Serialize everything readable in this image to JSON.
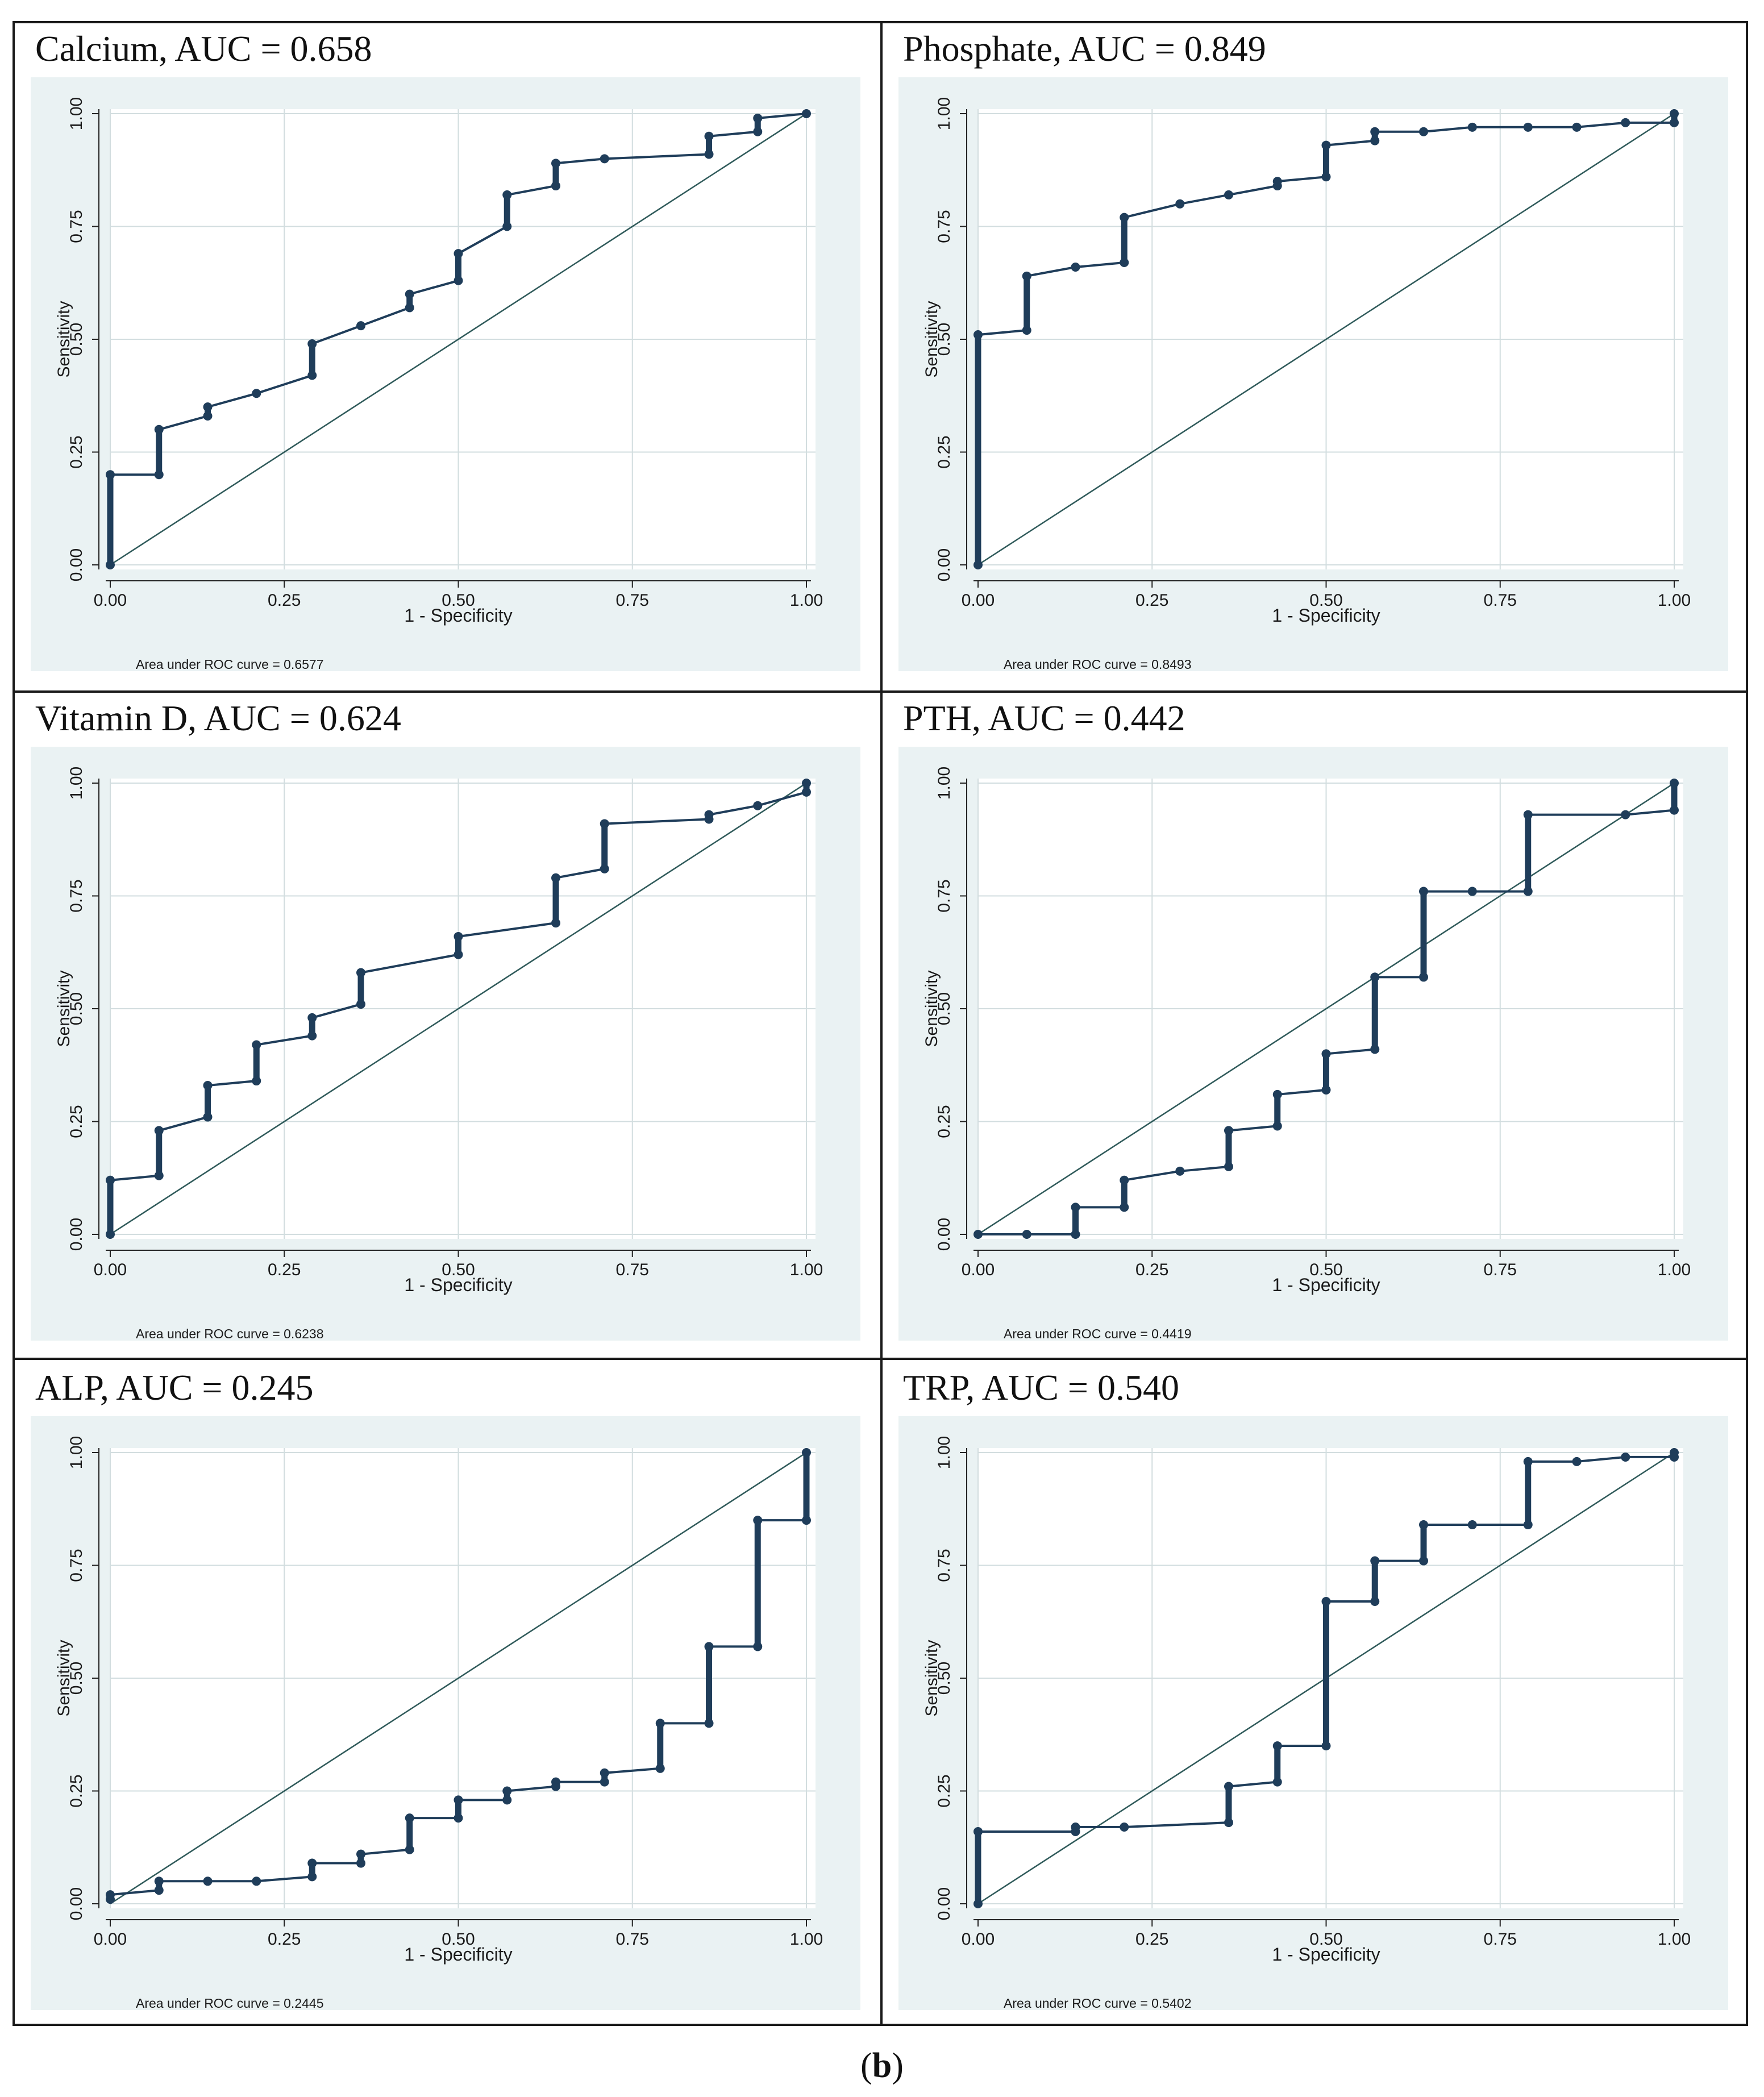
{
  "figure_label": "b",
  "common_axes": {
    "xlabel": "1 - Specificity",
    "ylabel": "Sensitivity",
    "xticks": [
      "0.00",
      "0.25",
      "0.50",
      "0.75",
      "1.00"
    ],
    "yticks": [
      "0.00",
      "0.25",
      "0.50",
      "0.75",
      "1.00"
    ]
  },
  "colors": {
    "curve": "#1f3d5a",
    "background": "#eaf2f3",
    "grid": "#d2dddf",
    "reference": "#2f5a5a"
  },
  "panels": [
    {
      "title": "Calcium, AUC = 0.658",
      "auc_note": "Area under ROC curve = 0.6577"
    },
    {
      "title": "Phosphate, AUC = 0.849",
      "auc_note": "Area under ROC curve = 0.8493"
    },
    {
      "title": "Vitamin D, AUC = 0.624",
      "auc_note": "Area under ROC curve = 0.6238"
    },
    {
      "title": "PTH, AUC = 0.442",
      "auc_note": "Area under ROC curve = 0.4419"
    },
    {
      "title": "ALP, AUC = 0.245",
      "auc_note": "Area under ROC curve = 0.2445"
    },
    {
      "title": "TRP, AUC = 0.540",
      "auc_note": "Area under ROC curve = 0.5402"
    }
  ],
  "chart_data": [
    {
      "type": "line",
      "title": "Calcium, AUC = 0.658",
      "xlabel": "1 - Specificity",
      "ylabel": "Sensitivity",
      "xlim": [
        0,
        1
      ],
      "ylim": [
        0,
        1
      ],
      "grid": true,
      "series": [
        {
          "values": [
            [
              0,
              0
            ],
            [
              0,
              0.2
            ],
            [
              0.07,
              0.2
            ],
            [
              0.07,
              0.3
            ],
            [
              0.14,
              0.33
            ],
            [
              0.14,
              0.35
            ],
            [
              0.21,
              0.38
            ],
            [
              0.29,
              0.42
            ],
            [
              0.29,
              0.49
            ],
            [
              0.36,
              0.53
            ],
            [
              0.43,
              0.57
            ],
            [
              0.43,
              0.6
            ],
            [
              0.5,
              0.63
            ],
            [
              0.5,
              0.69
            ],
            [
              0.57,
              0.75
            ],
            [
              0.57,
              0.82
            ],
            [
              0.64,
              0.84
            ],
            [
              0.64,
              0.89
            ],
            [
              0.71,
              0.9
            ],
            [
              0.86,
              0.91
            ],
            [
              0.86,
              0.95
            ],
            [
              0.93,
              0.96
            ],
            [
              0.93,
              0.99
            ],
            [
              1,
              1
            ]
          ]
        }
      ]
    },
    {
      "type": "line",
      "title": "Phosphate, AUC = 0.849",
      "xlabel": "1 - Specificity",
      "ylabel": "Sensitivity",
      "xlim": [
        0,
        1
      ],
      "ylim": [
        0,
        1
      ],
      "grid": true,
      "series": [
        {
          "values": [
            [
              0,
              0
            ],
            [
              0,
              0.51
            ],
            [
              0.07,
              0.52
            ],
            [
              0.07,
              0.64
            ],
            [
              0.14,
              0.66
            ],
            [
              0.21,
              0.67
            ],
            [
              0.21,
              0.77
            ],
            [
              0.29,
              0.8
            ],
            [
              0.36,
              0.82
            ],
            [
              0.43,
              0.84
            ],
            [
              0.43,
              0.85
            ],
            [
              0.5,
              0.86
            ],
            [
              0.5,
              0.93
            ],
            [
              0.57,
              0.94
            ],
            [
              0.57,
              0.96
            ],
            [
              0.64,
              0.96
            ],
            [
              0.71,
              0.97
            ],
            [
              0.79,
              0.97
            ],
            [
              0.86,
              0.97
            ],
            [
              0.93,
              0.98
            ],
            [
              1,
              0.98
            ],
            [
              1,
              1
            ]
          ]
        }
      ]
    },
    {
      "type": "line",
      "title": "Vitamin D, AUC = 0.624",
      "xlabel": "1 - Specificity",
      "ylabel": "Sensitivity",
      "xlim": [
        0,
        1
      ],
      "ylim": [
        0,
        1
      ],
      "grid": true,
      "series": [
        {
          "values": [
            [
              0,
              0
            ],
            [
              0,
              0.12
            ],
            [
              0.07,
              0.13
            ],
            [
              0.07,
              0.23
            ],
            [
              0.14,
              0.26
            ],
            [
              0.14,
              0.33
            ],
            [
              0.21,
              0.34
            ],
            [
              0.21,
              0.42
            ],
            [
              0.29,
              0.44
            ],
            [
              0.29,
              0.48
            ],
            [
              0.36,
              0.51
            ],
            [
              0.36,
              0.58
            ],
            [
              0.5,
              0.62
            ],
            [
              0.5,
              0.66
            ],
            [
              0.64,
              0.69
            ],
            [
              0.64,
              0.79
            ],
            [
              0.71,
              0.81
            ],
            [
              0.71,
              0.91
            ],
            [
              0.86,
              0.92
            ],
            [
              0.86,
              0.93
            ],
            [
              0.93,
              0.95
            ],
            [
              1,
              0.98
            ],
            [
              1,
              1
            ]
          ]
        }
      ]
    },
    {
      "type": "line",
      "title": "PTH, AUC = 0.442",
      "xlabel": "1 - Specificity",
      "ylabel": "Sensitivity",
      "xlim": [
        0,
        1
      ],
      "ylim": [
        0,
        1
      ],
      "grid": true,
      "series": [
        {
          "values": [
            [
              0,
              0
            ],
            [
              0.07,
              0
            ],
            [
              0.14,
              0
            ],
            [
              0.14,
              0.06
            ],
            [
              0.21,
              0.06
            ],
            [
              0.21,
              0.12
            ],
            [
              0.29,
              0.14
            ],
            [
              0.36,
              0.15
            ],
            [
              0.36,
              0.23
            ],
            [
              0.43,
              0.24
            ],
            [
              0.43,
              0.31
            ],
            [
              0.5,
              0.32
            ],
            [
              0.5,
              0.4
            ],
            [
              0.57,
              0.41
            ],
            [
              0.57,
              0.57
            ],
            [
              0.64,
              0.57
            ],
            [
              0.64,
              0.76
            ],
            [
              0.71,
              0.76
            ],
            [
              0.79,
              0.76
            ],
            [
              0.79,
              0.93
            ],
            [
              0.93,
              0.93
            ],
            [
              1,
              0.94
            ],
            [
              1,
              1
            ]
          ]
        }
      ]
    },
    {
      "type": "line",
      "title": "ALP, AUC = 0.245",
      "xlabel": "1 - Specificity",
      "ylabel": "Sensitivity",
      "xlim": [
        0,
        1
      ],
      "ylim": [
        0,
        1
      ],
      "grid": true,
      "series": [
        {
          "values": [
            [
              0,
              0.01
            ],
            [
              0,
              0.02
            ],
            [
              0.07,
              0.03
            ],
            [
              0.07,
              0.05
            ],
            [
              0.14,
              0.05
            ],
            [
              0.21,
              0.05
            ],
            [
              0.29,
              0.06
            ],
            [
              0.29,
              0.09
            ],
            [
              0.36,
              0.09
            ],
            [
              0.36,
              0.11
            ],
            [
              0.43,
              0.12
            ],
            [
              0.43,
              0.19
            ],
            [
              0.5,
              0.19
            ],
            [
              0.5,
              0.23
            ],
            [
              0.57,
              0.23
            ],
            [
              0.57,
              0.25
            ],
            [
              0.64,
              0.26
            ],
            [
              0.64,
              0.27
            ],
            [
              0.71,
              0.27
            ],
            [
              0.71,
              0.29
            ],
            [
              0.79,
              0.3
            ],
            [
              0.79,
              0.4
            ],
            [
              0.86,
              0.4
            ],
            [
              0.86,
              0.57
            ],
            [
              0.93,
              0.57
            ],
            [
              0.93,
              0.85
            ],
            [
              1,
              0.85
            ],
            [
              1,
              1
            ]
          ]
        }
      ]
    },
    {
      "type": "line",
      "title": "TRP, AUC = 0.540",
      "xlabel": "1 - Specificity",
      "ylabel": "Sensitivity",
      "xlim": [
        0,
        1
      ],
      "ylim": [
        0,
        1
      ],
      "grid": true,
      "series": [
        {
          "values": [
            [
              0,
              0
            ],
            [
              0,
              0.16
            ],
            [
              0.14,
              0.16
            ],
            [
              0.14,
              0.17
            ],
            [
              0.21,
              0.17
            ],
            [
              0.36,
              0.18
            ],
            [
              0.36,
              0.26
            ],
            [
              0.43,
              0.27
            ],
            [
              0.43,
              0.35
            ],
            [
              0.5,
              0.35
            ],
            [
              0.5,
              0.67
            ],
            [
              0.57,
              0.67
            ],
            [
              0.57,
              0.76
            ],
            [
              0.64,
              0.76
            ],
            [
              0.64,
              0.84
            ],
            [
              0.71,
              0.84
            ],
            [
              0.79,
              0.84
            ],
            [
              0.79,
              0.98
            ],
            [
              0.86,
              0.98
            ],
            [
              0.93,
              0.99
            ],
            [
              1,
              0.99
            ],
            [
              1,
              1
            ]
          ]
        }
      ]
    }
  ]
}
